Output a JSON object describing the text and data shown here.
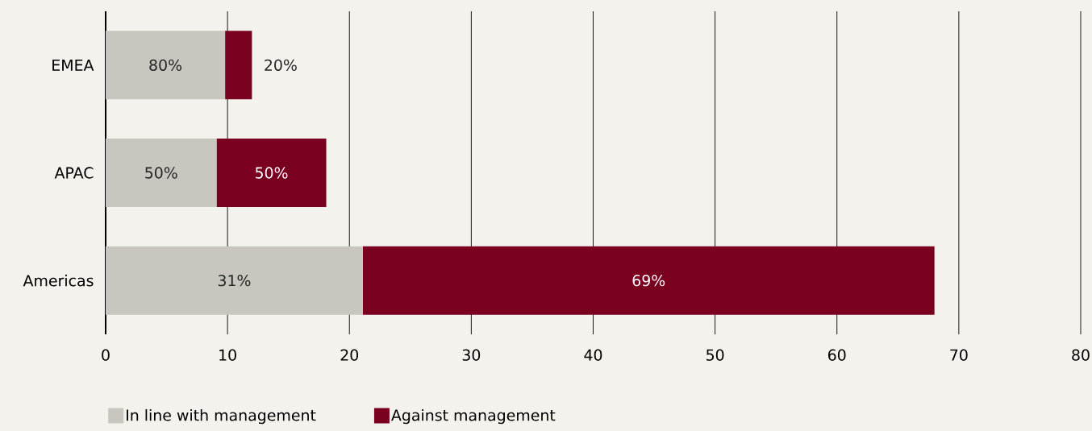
{
  "chart_data": {
    "type": "bar",
    "orientation": "horizontal",
    "stacked": true,
    "categories": [
      "EMEA",
      "APAC",
      "Americas"
    ],
    "series": [
      {
        "name": "In line with management",
        "color": "#c8c6bf",
        "values": [
          9.8,
          9.1,
          21.1
        ]
      },
      {
        "name": "Against management",
        "color": "#7a0020",
        "values": [
          2.2,
          9.0,
          46.9
        ]
      }
    ],
    "annotations": [
      "80%",
      "20%",
      "50%",
      "50%",
      "31%",
      "69%"
    ],
    "xlim": [
      0,
      80
    ],
    "xticks": [
      0,
      10,
      20,
      30,
      40,
      50,
      60,
      70,
      80
    ],
    "grid": "x",
    "legend": "bottom left"
  }
}
